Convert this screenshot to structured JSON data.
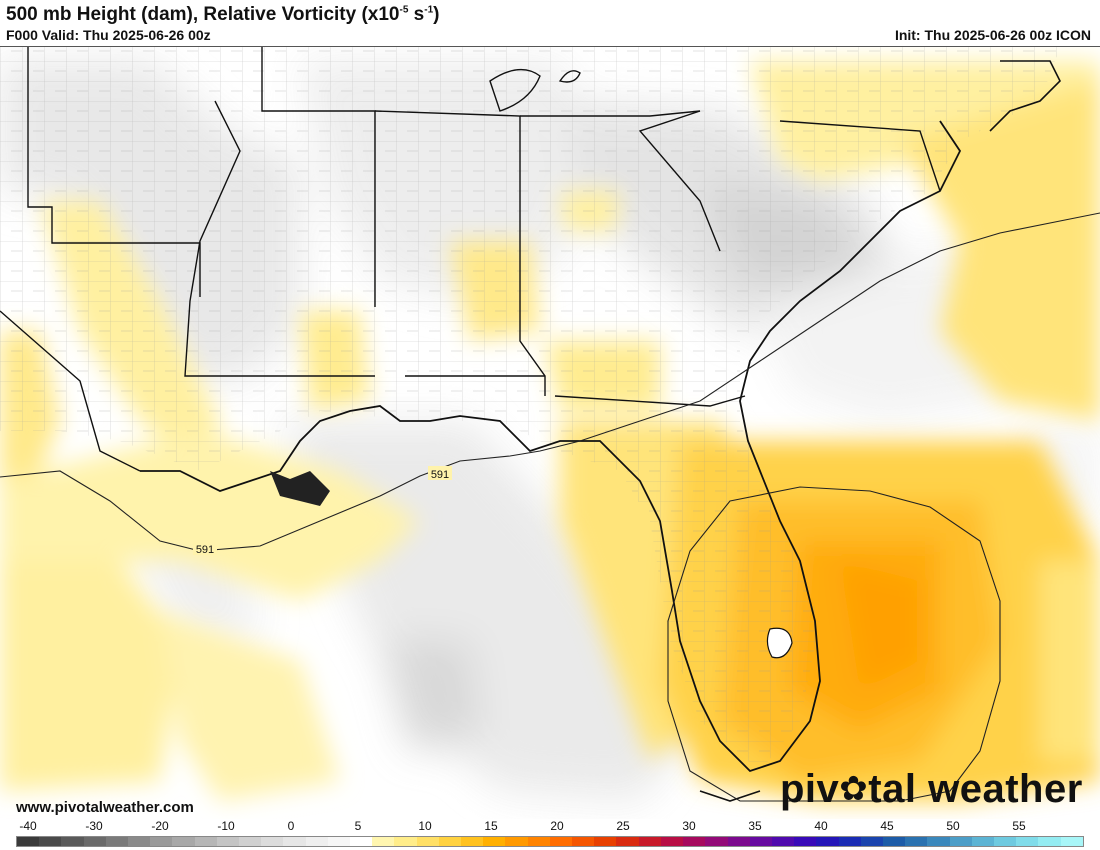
{
  "header": {
    "title_main": "500 mb Height (dam), Relative Vorticity (x10",
    "title_exp1": "-5",
    "title_mid": " s",
    "title_exp2": "-1",
    "title_end": ")",
    "valid": "F000 Valid: Thu 2025-06-26 00z",
    "init": "Init: Thu 2025-06-26 00z ICON"
  },
  "map": {
    "contour_labels": [
      "591",
      "591"
    ],
    "land_color": "#ffffff",
    "ocean_color": "#ffffff",
    "border_color": "#111111",
    "county_color": "#9a9a9a"
  },
  "footer": {
    "website": "www.pivotalweather.com",
    "brand_pre": "piv",
    "brand_post": "tal weather"
  },
  "colorbar": {
    "ticks": [
      "-40",
      "-30",
      "-20",
      "-10",
      "0",
      "5",
      "10",
      "15",
      "20",
      "25",
      "30",
      "35",
      "40",
      "45",
      "50",
      "55"
    ],
    "colors": [
      "#3a3a3a",
      "#4a4a4a",
      "#5a5a5a",
      "#6a6a6a",
      "#7a7a7a",
      "#8a8a8a",
      "#9a9a9a",
      "#a8a8a8",
      "#b6b6b6",
      "#c4c4c4",
      "#d0d0d0",
      "#dcdcdc",
      "#e6e6e6",
      "#efefef",
      "#f6f6f6",
      "#ffffff",
      "#fff6b0",
      "#ffed8a",
      "#ffe066",
      "#ffd240",
      "#ffc21f",
      "#ffb000",
      "#ff9a00",
      "#ff8400",
      "#ff6d00",
      "#f55600",
      "#e84000",
      "#d92b10",
      "#c81a2a",
      "#b80e45",
      "#a60a5e",
      "#930a78",
      "#7c0a8e",
      "#660aa0",
      "#4f0aae",
      "#380ab8",
      "#2416b8",
      "#1a2cb4",
      "#1a44ae",
      "#1c5ca8",
      "#2a72b0",
      "#3a88bc",
      "#4c9ec8",
      "#5cb4d4",
      "#6ecae0",
      "#80dcea",
      "#94ecf2",
      "#a8f6f8"
    ]
  }
}
